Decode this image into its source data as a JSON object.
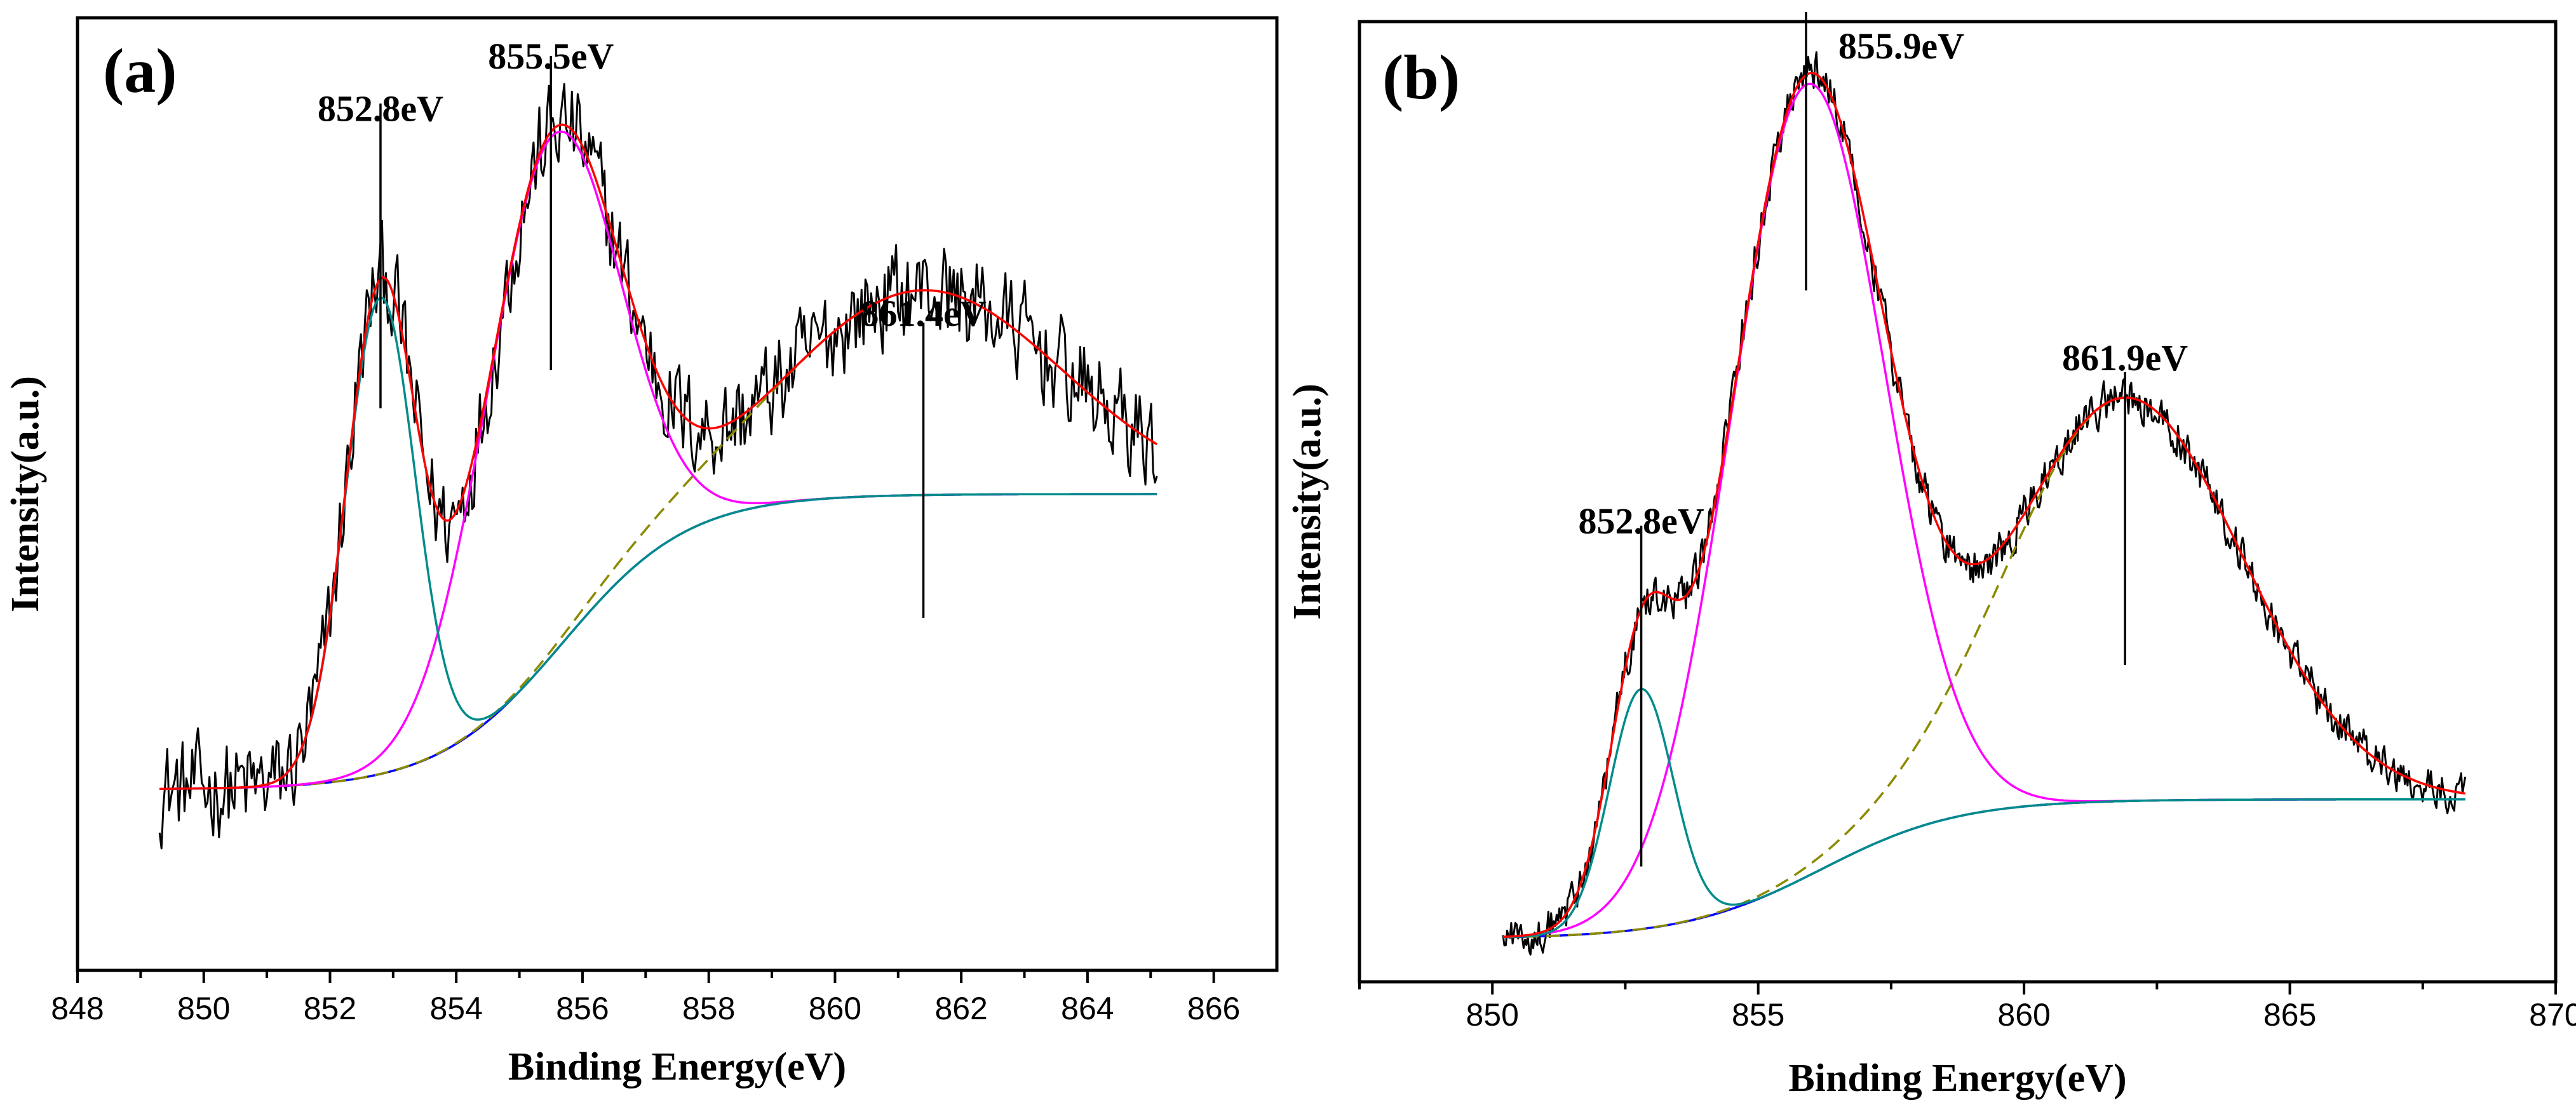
{
  "chart_data": [
    {
      "type": "line",
      "panel_label": "(a)",
      "xlabel": "Binding Energy(eV)",
      "ylabel": "Intensity(a.u.)",
      "xlim": [
        848,
        867
      ],
      "ylim": [
        0,
        1
      ],
      "x_ticks": [
        848,
        850,
        852,
        854,
        856,
        858,
        860,
        862,
        864,
        866
      ],
      "x_range": [
        849.3,
        865.1
      ],
      "y_ticks_shown": false,
      "background": {
        "start": 0.19,
        "end": 0.5,
        "center": 855.7,
        "width": 1.0
      },
      "peaks": [
        {
          "center": 852.8,
          "amplitude": 0.5,
          "sigma": 0.55
        },
        {
          "center": 855.5,
          "amplitude": 0.545,
          "sigma": 1.05
        },
        {
          "center": 861.4,
          "amplitude": 0.215,
          "sigma": 2.2
        }
      ],
      "noise": 0.03,
      "annotations": [
        {
          "x": 852.8,
          "text": "852.8eV",
          "line_top": 0.91,
          "line_bottom": 0.59,
          "label_y": 0.905
        },
        {
          "x": 855.5,
          "text": "855.5eV",
          "line_top": 0.96,
          "line_bottom": 0.63,
          "label_y": 0.96
        },
        {
          "x": 861.4,
          "text": "861.4eV",
          "line_top": 0.68,
          "line_bottom": 0.37,
          "label_y": 0.69
        }
      ],
      "series": [
        {
          "name": "raw data",
          "color": "#000000",
          "style": "noisy"
        },
        {
          "name": "envelope fit",
          "color": "#ff0000",
          "style": "solid"
        },
        {
          "name": "852.8 eV component",
          "color": "#008b8b",
          "style": "solid"
        },
        {
          "name": "855.5 eV component",
          "color": "#ff00ff",
          "style": "solid"
        },
        {
          "name": "861.4 eV satellite",
          "color": "#8b8b00",
          "style": "dashed"
        },
        {
          "name": "background",
          "color": "#0000ff",
          "style": "solid"
        }
      ]
    },
    {
      "type": "line",
      "panel_label": "(b)",
      "xlabel": "Binding Energy(eV)",
      "ylabel": "Intensity(a.u.)",
      "xlim": [
        847.5,
        870
      ],
      "ylim": [
        0,
        1
      ],
      "x_ticks": [
        850,
        855,
        860,
        865,
        870
      ],
      "x_range": [
        850.2,
        868.3
      ],
      "y_ticks_shown": false,
      "background": {
        "start": 0.045,
        "end": 0.19,
        "center": 856.2,
        "width": 1.3
      },
      "peaks": [
        {
          "center": 852.8,
          "amplitude": 0.25,
          "sigma": 0.6
        },
        {
          "center": 855.9,
          "amplitude": 0.825,
          "sigma": 1.45
        },
        {
          "center": 861.9,
          "amplitude": 0.42,
          "sigma": 2.2
        }
      ],
      "noise": 0.012,
      "annotations": [
        {
          "x": 852.8,
          "text": "852.8eV",
          "line_top": 0.475,
          "line_bottom": 0.12,
          "label_y": 0.48
        },
        {
          "x": 855.9,
          "text": "855.9eV",
          "line_top": 1.01,
          "line_bottom": 0.72,
          "label_y": 0.975
        },
        {
          "x": 861.9,
          "text": "861.9eV",
          "line_top": 0.635,
          "line_bottom": 0.33,
          "label_y": 0.65
        }
      ],
      "series": [
        {
          "name": "raw data",
          "color": "#000000",
          "style": "noisy"
        },
        {
          "name": "envelope fit",
          "color": "#ff0000",
          "style": "solid"
        },
        {
          "name": "852.8 eV component",
          "color": "#008b8b",
          "style": "solid"
        },
        {
          "name": "855.9 eV component",
          "color": "#ff00ff",
          "style": "solid"
        },
        {
          "name": "861.9 eV satellite",
          "color": "#8b8b00",
          "style": "dashed"
        },
        {
          "name": "background",
          "color": "#0000ff",
          "style": "solid"
        }
      ]
    }
  ]
}
